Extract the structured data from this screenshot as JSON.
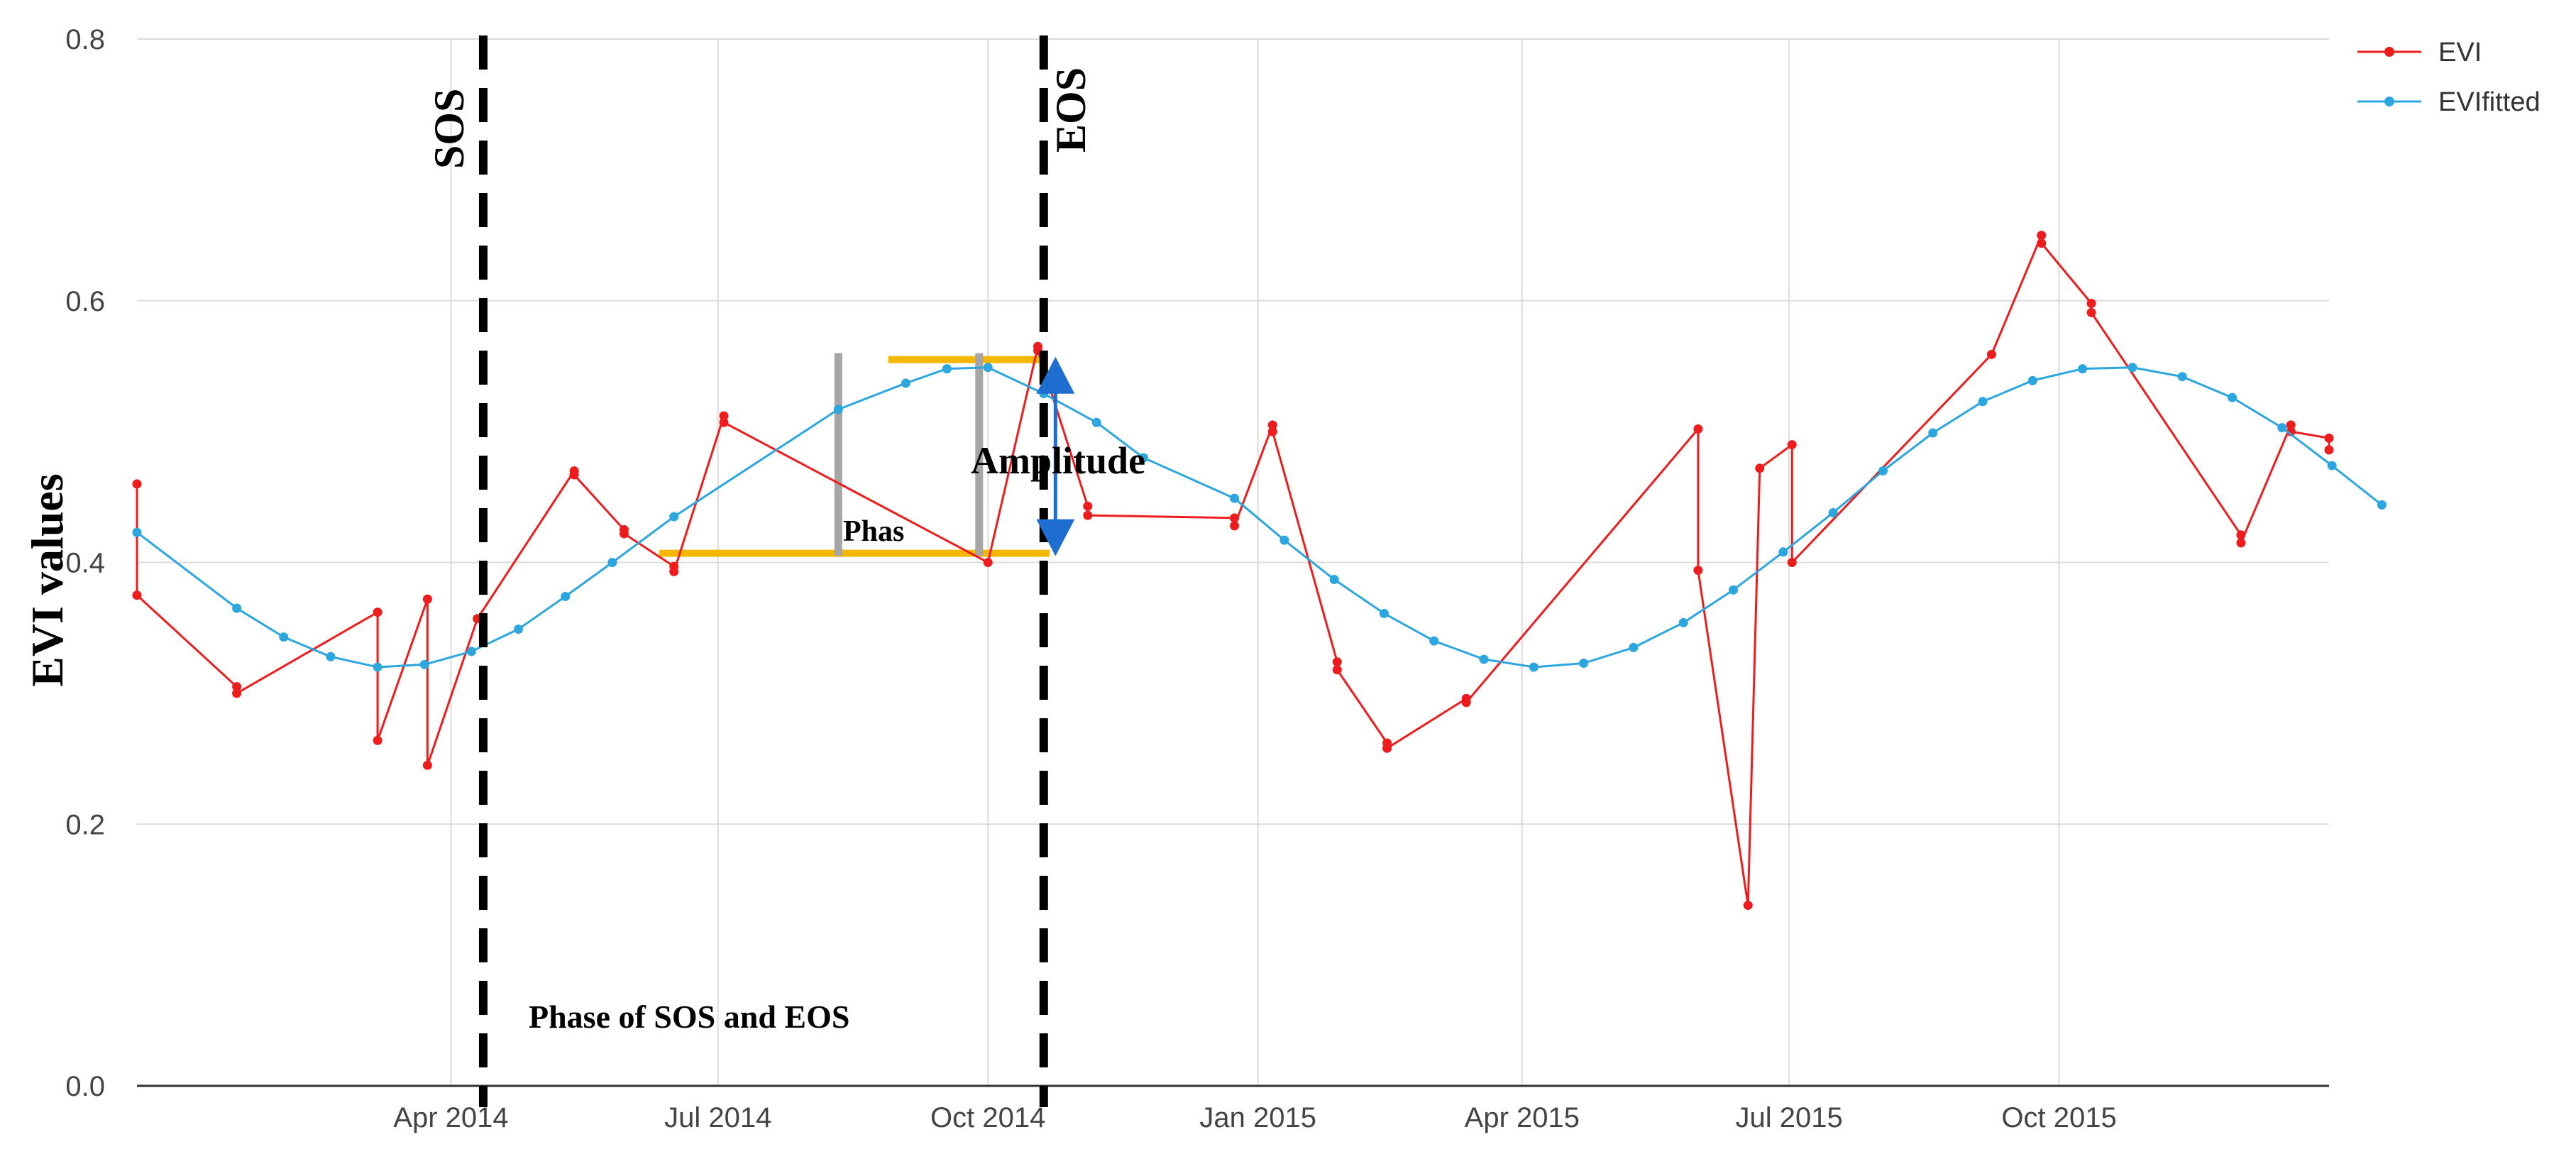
{
  "chart_data": {
    "type": "line",
    "title": "",
    "xlabel": "",
    "ylabel": "EVI values",
    "ylim": [
      0.0,
      0.8
    ],
    "xlim": [
      "2013-12-15",
      "2016-01-01"
    ],
    "y_ticks": [
      "0.0",
      "0.2",
      "0.4",
      "0.6",
      "0.8"
    ],
    "x_ticks": [
      {
        "label": "Apr 2014",
        "date": "2014-04-01"
      },
      {
        "label": "Jul 2014",
        "date": "2014-07-01"
      },
      {
        "label": "Oct 2014",
        "date": "2014-10-01"
      },
      {
        "label": "Jan 2015",
        "date": "2015-01-01"
      },
      {
        "label": "Apr 2015",
        "date": "2015-04-01"
      },
      {
        "label": "Jul 2015",
        "date": "2015-07-01"
      },
      {
        "label": "Oct 2015",
        "date": "2015-10-01"
      }
    ],
    "grid": true,
    "legend_position": "top-right",
    "series": [
      {
        "name": "EVI",
        "color": "#ee1c1c",
        "points": [
          {
            "x": "2013-12-15",
            "y": 0.46
          },
          {
            "x": "2013-12-15",
            "y": 0.375
          },
          {
            "x": "2014-01-18",
            "y": 0.305
          },
          {
            "x": "2014-01-18",
            "y": 0.3
          },
          {
            "x": "2014-03-07",
            "y": 0.362
          },
          {
            "x": "2014-03-07",
            "y": 0.264
          },
          {
            "x": "2014-03-24",
            "y": 0.372
          },
          {
            "x": "2014-03-24",
            "y": 0.245
          },
          {
            "x": "2014-04-10",
            "y": 0.357
          },
          {
            "x": "2014-05-13",
            "y": 0.47
          },
          {
            "x": "2014-05-13",
            "y": 0.467
          },
          {
            "x": "2014-05-30",
            "y": 0.425
          },
          {
            "x": "2014-05-30",
            "y": 0.422
          },
          {
            "x": "2014-06-16",
            "y": 0.397
          },
          {
            "x": "2014-06-16",
            "y": 0.393
          },
          {
            "x": "2014-07-03",
            "y": 0.512
          },
          {
            "x": "2014-07-03",
            "y": 0.507
          },
          {
            "x": "2014-10-01",
            "y": 0.4
          },
          {
            "x": "2014-10-18",
            "y": 0.565
          },
          {
            "x": "2014-10-18",
            "y": 0.562
          },
          {
            "x": "2014-11-04",
            "y": 0.443
          },
          {
            "x": "2014-11-04",
            "y": 0.436
          },
          {
            "x": "2014-12-24",
            "y": 0.434
          },
          {
            "x": "2014-12-24",
            "y": 0.428
          },
          {
            "x": "2015-01-06",
            "y": 0.505
          },
          {
            "x": "2015-01-06",
            "y": 0.5
          },
          {
            "x": "2015-01-28",
            "y": 0.324
          },
          {
            "x": "2015-01-28",
            "y": 0.318
          },
          {
            "x": "2015-02-14",
            "y": 0.262
          },
          {
            "x": "2015-02-14",
            "y": 0.258
          },
          {
            "x": "2015-03-13",
            "y": 0.296
          },
          {
            "x": "2015-03-13",
            "y": 0.293
          },
          {
            "x": "2015-05-31",
            "y": 0.502
          },
          {
            "x": "2015-05-31",
            "y": 0.394
          },
          {
            "x": "2015-06-17",
            "y": 0.138
          },
          {
            "x": "2015-06-21",
            "y": 0.472
          },
          {
            "x": "2015-07-02",
            "y": 0.49
          },
          {
            "x": "2015-07-02",
            "y": 0.4
          },
          {
            "x": "2015-09-08",
            "y": 0.559
          },
          {
            "x": "2015-09-25",
            "y": 0.65
          },
          {
            "x": "2015-09-25",
            "y": 0.644
          },
          {
            "x": "2015-10-12",
            "y": 0.598
          },
          {
            "x": "2015-10-12",
            "y": 0.591
          },
          {
            "x": "2015-12-02",
            "y": 0.421
          },
          {
            "x": "2015-12-02",
            "y": 0.415
          },
          {
            "x": "2015-12-19",
            "y": 0.505
          },
          {
            "x": "2015-12-19",
            "y": 0.5
          },
          {
            "x": "2016-01-01",
            "y": 0.495
          },
          {
            "x": "2016-01-01",
            "y": 0.486
          }
        ]
      },
      {
        "name": "EVIfitted",
        "color": "#2ba6de",
        "points": [
          {
            "x": "2013-12-15",
            "y": 0.423
          },
          {
            "x": "2014-01-18",
            "y": 0.365
          },
          {
            "x": "2014-02-03",
            "y": 0.343
          },
          {
            "x": "2014-02-19",
            "y": 0.328
          },
          {
            "x": "2014-03-07",
            "y": 0.32
          },
          {
            "x": "2014-03-23",
            "y": 0.322
          },
          {
            "x": "2014-04-08",
            "y": 0.332
          },
          {
            "x": "2014-04-24",
            "y": 0.349
          },
          {
            "x": "2014-05-10",
            "y": 0.374
          },
          {
            "x": "2014-05-26",
            "y": 0.4
          },
          {
            "x": "2014-06-16",
            "y": 0.435
          },
          {
            "x": "2014-08-11",
            "y": 0.517
          },
          {
            "x": "2014-09-03",
            "y": 0.537
          },
          {
            "x": "2014-09-17",
            "y": 0.548
          },
          {
            "x": "2014-10-01",
            "y": 0.549
          },
          {
            "x": "2014-10-20",
            "y": 0.529
          },
          {
            "x": "2014-11-07",
            "y": 0.507
          },
          {
            "x": "2014-11-23",
            "y": 0.48
          },
          {
            "x": "2014-12-24",
            "y": 0.449
          },
          {
            "x": "2015-01-10",
            "y": 0.417
          },
          {
            "x": "2015-01-27",
            "y": 0.387
          },
          {
            "x": "2015-02-13",
            "y": 0.361
          },
          {
            "x": "2015-03-02",
            "y": 0.34
          },
          {
            "x": "2015-03-19",
            "y": 0.326
          },
          {
            "x": "2015-04-05",
            "y": 0.32
          },
          {
            "x": "2015-04-22",
            "y": 0.323
          },
          {
            "x": "2015-05-09",
            "y": 0.335
          },
          {
            "x": "2015-05-26",
            "y": 0.354
          },
          {
            "x": "2015-06-12",
            "y": 0.379
          },
          {
            "x": "2015-06-29",
            "y": 0.408
          },
          {
            "x": "2015-07-16",
            "y": 0.438
          },
          {
            "x": "2015-08-02",
            "y": 0.47
          },
          {
            "x": "2015-08-19",
            "y": 0.499
          },
          {
            "x": "2015-09-05",
            "y": 0.523
          },
          {
            "x": "2015-09-22",
            "y": 0.539
          },
          {
            "x": "2015-10-09",
            "y": 0.548
          },
          {
            "x": "2015-10-26",
            "y": 0.549
          },
          {
            "x": "2015-11-12",
            "y": 0.542
          },
          {
            "x": "2015-11-29",
            "y": 0.526
          },
          {
            "x": "2015-12-16",
            "y": 0.503
          },
          {
            "x": "2016-01-02",
            "y": 0.474
          },
          {
            "x": "2016-01-19",
            "y": 0.444
          }
        ]
      }
    ],
    "annotations": {
      "sos": {
        "label": "SOS",
        "date": "2014-04-12"
      },
      "eos": {
        "label": "EOS",
        "date": "2014-10-20"
      },
      "amplitude_label": "Amplitude",
      "phase_short_label": "Phas",
      "phase_caption": "Phase of SOS and EOS",
      "amplitude_top": 0.555,
      "amplitude_base": 0.407,
      "phase_bars": [
        {
          "date": "2014-08-11",
          "top": 0.56,
          "bottom": 0.405
        },
        {
          "date": "2014-09-28",
          "top": 0.56,
          "bottom": 0.405
        }
      ],
      "colors": {
        "marker": "#f5b800",
        "arrow": "#1e6ed2",
        "phase_bar": "#a6a6a6",
        "eos_line": "#000000"
      }
    }
  }
}
